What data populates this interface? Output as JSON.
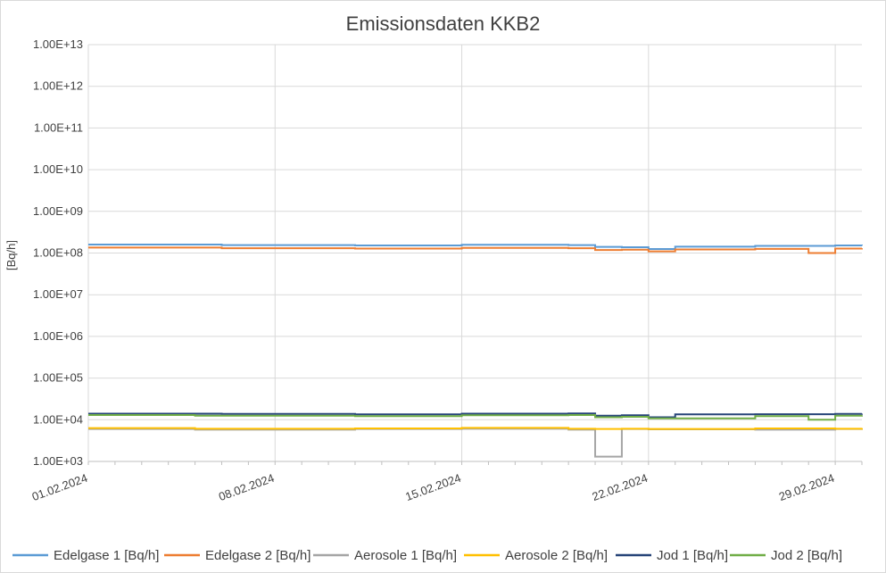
{
  "chart_data": {
    "type": "line",
    "title": "Emissionsdaten KKB2",
    "xlabel": "",
    "ylabel": "[Bq/h]",
    "yscale": "log",
    "ylim": [
      1000,
      10000000000000
    ],
    "xlim": [
      "01.02.2024",
      "01.03.2024"
    ],
    "y_tick_labels": [
      "1.00E+03",
      "1.00E+04",
      "1.00E+05",
      "1.00E+06",
      "1.00E+07",
      "1.00E+08",
      "1.00E+09",
      "1.00E+10",
      "1.00E+11",
      "1.00E+12",
      "1.00E+13"
    ],
    "x_tick_labels": [
      "01.02.2024",
      "08.02.2024",
      "15.02.2024",
      "22.02.2024",
      "29.02.2024"
    ],
    "grid": true,
    "legend": "bottom",
    "series": [
      {
        "name": "Edelgase 1 [Bq/h]",
        "color": "#5b9bd5",
        "x": [
          "01.02.2024",
          "06.02.2024",
          "11.02.2024",
          "15.02.2024",
          "19.02.2024",
          "20.02.2024",
          "21.02.2024",
          "22.02.2024",
          "23.02.2024",
          "26.02.2024",
          "29.02.2024",
          "01.03.2024"
        ],
        "y": [
          160000000,
          155000000,
          152000000,
          158000000,
          155000000,
          140000000,
          138000000,
          125000000,
          142000000,
          148000000,
          152000000,
          150000000
        ]
      },
      {
        "name": "Edelgase 2 [Bq/h]",
        "color": "#ed7d31",
        "x": [
          "01.02.2024",
          "06.02.2024",
          "11.02.2024",
          "15.02.2024",
          "19.02.2024",
          "20.02.2024",
          "21.02.2024",
          "22.02.2024",
          "23.02.2024",
          "26.02.2024",
          "28.02.2024",
          "29.02.2024",
          "01.03.2024"
        ],
        "y": [
          135000000,
          130000000,
          128000000,
          133000000,
          130000000,
          118000000,
          120000000,
          110000000,
          122000000,
          126000000,
          100000000,
          128000000,
          130000000
        ]
      },
      {
        "name": "Aerosole 1 [Bq/h]",
        "color": "#a5a5a5",
        "x": [
          "01.02.2024",
          "05.02.2024",
          "11.02.2024",
          "15.02.2024",
          "19.02.2024",
          "20.02.2024",
          "21.02.2024",
          "22.02.2024",
          "26.02.2024",
          "29.02.2024",
          "01.03.2024"
        ],
        "y": [
          6000,
          5800,
          6000,
          6100,
          5800,
          1300,
          6000,
          5900,
          5800,
          6000,
          6100
        ]
      },
      {
        "name": "Aerosole 2 [Bq/h]",
        "color": "#ffc000",
        "x": [
          "01.02.2024",
          "05.02.2024",
          "11.02.2024",
          "15.02.2024",
          "19.02.2024",
          "20.02.2024",
          "21.02.2024",
          "22.02.2024",
          "26.02.2024",
          "29.02.2024",
          "01.03.2024"
        ],
        "y": [
          6300,
          6100,
          6200,
          6400,
          6100,
          6000,
          6100,
          6000,
          6200,
          6100,
          6300
        ]
      },
      {
        "name": "Jod 1 [Bq/h]",
        "color": "#264478",
        "x": [
          "01.02.2024",
          "06.02.2024",
          "11.02.2024",
          "15.02.2024",
          "19.02.2024",
          "20.02.2024",
          "21.02.2024",
          "22.02.2024",
          "23.02.2024",
          "26.02.2024",
          "29.02.2024",
          "01.03.2024"
        ],
        "y": [
          14000,
          13800,
          13500,
          14000,
          14200,
          12500,
          12800,
          11500,
          13500,
          13600,
          13800,
          14000
        ]
      },
      {
        "name": "Jod 2 [Bq/h]",
        "color": "#70ad47",
        "x": [
          "01.02.2024",
          "05.02.2024",
          "11.02.2024",
          "15.02.2024",
          "19.02.2024",
          "20.02.2024",
          "21.02.2024",
          "22.02.2024",
          "26.02.2024",
          "28.02.2024",
          "29.02.2024",
          "01.03.2024"
        ],
        "y": [
          13000,
          12500,
          12200,
          12800,
          13000,
          11500,
          11800,
          10800,
          12200,
          10000,
          12500,
          12800
        ]
      }
    ]
  }
}
